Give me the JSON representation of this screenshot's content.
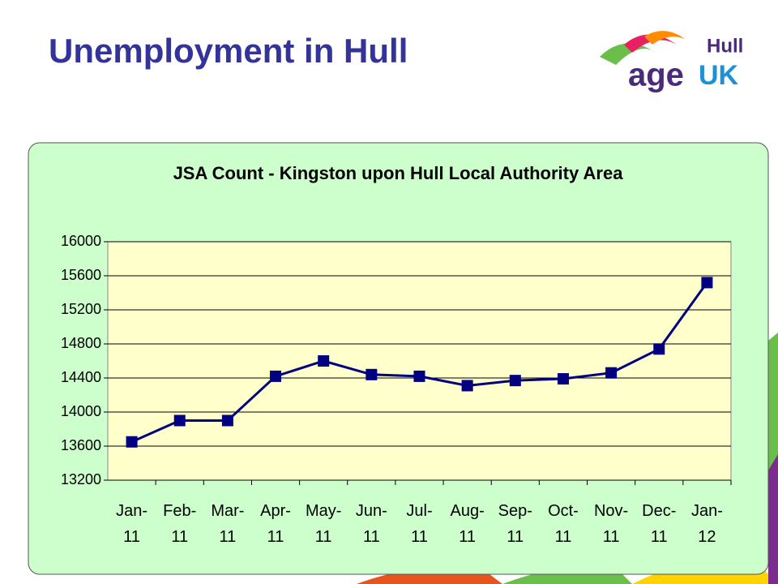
{
  "header": {
    "title": "Unemployment in Hull"
  },
  "logo": {
    "place": "Hull",
    "word1": "age",
    "word2": "UK"
  },
  "chart_data": {
    "type": "line",
    "title": "JSA Count - Kingston upon Hull Local Authority Area",
    "categories": [
      "Jan-11",
      "Feb-11",
      "Mar-11",
      "Apr-11",
      "May-11",
      "Jun-11",
      "Jul-11",
      "Aug-11",
      "Sep-11",
      "Oct-11",
      "Nov-11",
      "Dec-11",
      "Jan-12"
    ],
    "series": [
      {
        "name": "JSA Count",
        "color": "#000080",
        "values": [
          13650,
          13900,
          13900,
          14420,
          14600,
          14440,
          14420,
          14310,
          14370,
          14390,
          14460,
          14740,
          15520
        ]
      }
    ],
    "ylim": [
      13200,
      16000
    ],
    "yticks": [
      13200,
      13600,
      14000,
      14400,
      14800,
      15200,
      15600,
      16000
    ],
    "grid": true
  }
}
